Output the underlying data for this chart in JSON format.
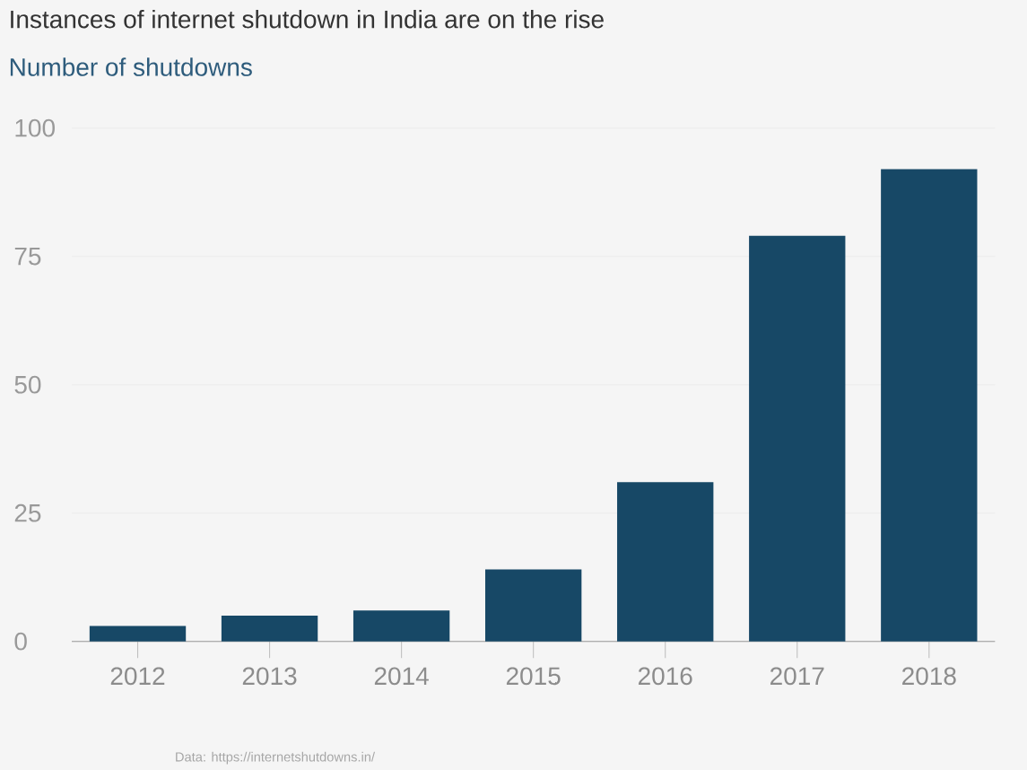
{
  "chart_data": {
    "type": "bar",
    "title": "Instances of internet shutdown in India are on the rise",
    "subtitle": "Number of shutdowns",
    "categories": [
      "2012",
      "2013",
      "2014",
      "2015",
      "2016",
      "2017",
      "2018"
    ],
    "values": [
      3,
      5,
      6,
      14,
      31,
      79,
      92
    ],
    "color": "#174866",
    "ylim": [
      0,
      100
    ],
    "yticks": [
      0,
      25,
      50,
      75,
      100
    ],
    "grid": "y",
    "annotations": [
      "Data: https://internetshutdowns.in/"
    ]
  }
}
